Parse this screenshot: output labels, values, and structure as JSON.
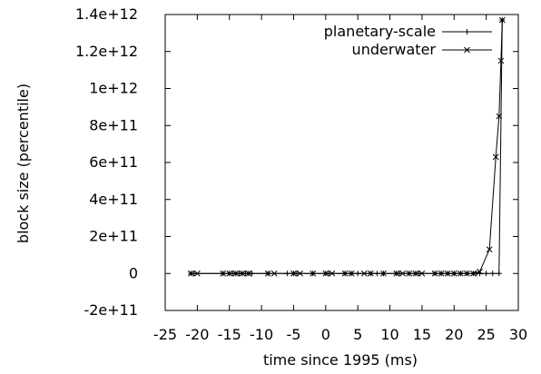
{
  "chart_data": {
    "type": "line",
    "title": "",
    "xlabel": "time since 1995 (ms)",
    "ylabel": "block size (percentile)",
    "xlim": [
      -25,
      30
    ],
    "ylim": [
      -200000000000.0,
      1400000000000.0
    ],
    "x_ticks": [
      -25,
      -20,
      -15,
      -10,
      -5,
      0,
      5,
      10,
      15,
      20,
      25,
      30
    ],
    "x_tick_labels": [
      "-25",
      "-20",
      "-15",
      "-10",
      "-5",
      "0",
      "5",
      "10",
      "15",
      "20",
      "25",
      "30"
    ],
    "y_ticks": [
      -200000000000.0,
      0,
      200000000000.0,
      400000000000.0,
      600000000000.0,
      800000000000.0,
      1000000000000.0,
      1200000000000.0,
      1400000000000.0
    ],
    "y_tick_labels": [
      "-2e+11",
      "0",
      "2e+11",
      "4e+11",
      "6e+11",
      "8e+11",
      "1e+12",
      "1.2e+12",
      "1.4e+12"
    ],
    "grid": false,
    "legend_position": "top-right",
    "series": [
      {
        "name": "planetary-scale",
        "marker": "plus",
        "color": "#000000",
        "x": [
          -21,
          -20.5,
          -16,
          -15,
          -14.5,
          -14,
          -13.5,
          -13,
          -12.5,
          -12,
          -11.5,
          -9,
          -6,
          -5,
          -4.5,
          -2,
          0,
          0.5,
          3,
          4,
          5,
          7,
          8,
          9,
          11,
          11.5,
          13,
          14,
          14.5,
          17,
          18,
          19,
          20,
          21,
          22,
          23,
          23.5,
          24,
          25,
          26,
          27,
          27.5
        ],
        "y": [
          0,
          0,
          0,
          0,
          0,
          0,
          0,
          0,
          0,
          0,
          0,
          0,
          0,
          0,
          0,
          0,
          0,
          0,
          0,
          0,
          0,
          0,
          0,
          0,
          0,
          0,
          0,
          0,
          0,
          0,
          0,
          0,
          0,
          0,
          0,
          0,
          0,
          0,
          0,
          0,
          0,
          1370000000000.0
        ]
      },
      {
        "name": "underwater",
        "marker": "cross",
        "color": "#000000",
        "x": [
          -21,
          -20,
          -16,
          -15,
          -14,
          -13,
          -12,
          -9,
          -8,
          -5,
          -4,
          -2,
          0,
          1,
          3,
          4,
          6,
          7,
          9,
          11,
          12,
          13,
          14,
          15,
          17,
          18,
          19,
          20,
          21,
          22,
          23,
          24,
          25.5,
          26.5,
          27,
          27.3,
          27.5
        ],
        "y": [
          0,
          0,
          0,
          0,
          0,
          0,
          0,
          0,
          0,
          0,
          0,
          0,
          0,
          0,
          0,
          0,
          0,
          0,
          0,
          0,
          0,
          0,
          0,
          0,
          0,
          0,
          0,
          0,
          0,
          0,
          0,
          10000000000.0,
          130000000000.0,
          630000000000.0,
          850000000000.0,
          1150000000000.0,
          1370000000000.0
        ]
      }
    ]
  }
}
